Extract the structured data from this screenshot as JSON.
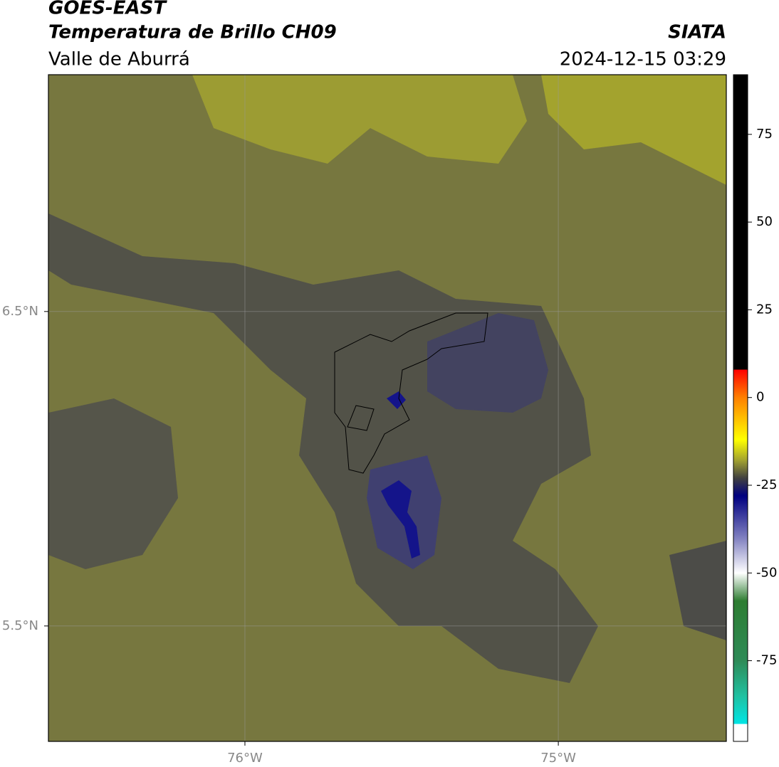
{
  "chart_data": {
    "type": "map",
    "title": "GOES-EAST",
    "subtitle": "Temperatura de Brillo CH09",
    "region": "Valle de Aburrá",
    "source": "SIATA",
    "timestamp": "2024-12-15 03:29",
    "xlim": [
      -76.627,
      -74.464
    ],
    "ylim": [
      5.133,
      7.253
    ],
    "xticks": [
      {
        "value": -76,
        "label": "76°W"
      },
      {
        "value": -75,
        "label": "75°W"
      }
    ],
    "yticks": [
      {
        "value": 6.5,
        "label": "6.5°N"
      },
      {
        "value": 5.5,
        "label": "5.5°N"
      }
    ],
    "grid": true,
    "colorbar": {
      "ylim": [
        -98,
        92
      ],
      "yticks": [
        75,
        50,
        25,
        0,
        -25,
        -50,
        -75
      ],
      "stops": [
        {
          "value": 92,
          "color": "#000000"
        },
        {
          "value": 8,
          "color": "#000000"
        },
        {
          "value": 8,
          "color": "#ff0000"
        },
        {
          "value": 0,
          "color": "#ff8000"
        },
        {
          "value": -12,
          "color": "#ffff00"
        },
        {
          "value": -18,
          "color": "#a0a030"
        },
        {
          "value": -23,
          "color": "#404040"
        },
        {
          "value": -28,
          "color": "#000080"
        },
        {
          "value": -40,
          "color": "#8080c0"
        },
        {
          "value": -50,
          "color": "#ffffff"
        },
        {
          "value": -58,
          "color": "#2e7d32"
        },
        {
          "value": -75,
          "color": "#2e8b57"
        },
        {
          "value": -85,
          "color": "#20c0a0"
        },
        {
          "value": -93,
          "color": "#00e5e5"
        },
        {
          "value": -93,
          "color": "#ffffff"
        },
        {
          "value": -98,
          "color": "#ffffff"
        }
      ]
    }
  }
}
